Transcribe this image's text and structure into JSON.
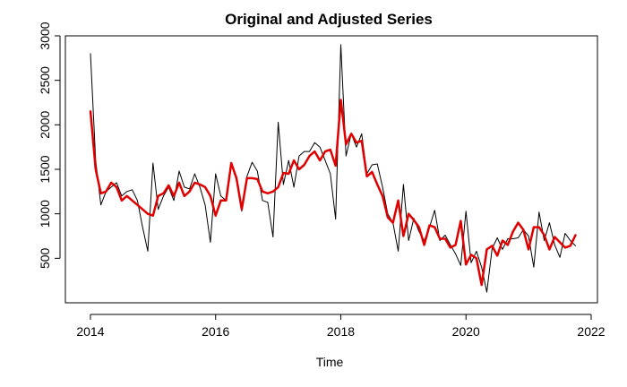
{
  "chart_data": {
    "type": "line",
    "title": "Original and Adjusted Series",
    "xlabel": "Time",
    "ylabel": "",
    "xlim": [
      2013.6,
      2022.1
    ],
    "ylim": [
      0,
      3000
    ],
    "x_ticks": [
      2014,
      2016,
      2018,
      2020,
      2022
    ],
    "y_ticks": [
      500,
      1000,
      1500,
      2000,
      2500,
      3000
    ],
    "grid": false,
    "legend": "none",
    "x": [
      2014.0,
      2014.083,
      2014.167,
      2014.25,
      2014.333,
      2014.417,
      2014.5,
      2014.583,
      2014.667,
      2014.75,
      2014.833,
      2014.917,
      2015.0,
      2015.083,
      2015.167,
      2015.25,
      2015.333,
      2015.417,
      2015.5,
      2015.583,
      2015.667,
      2015.75,
      2015.833,
      2015.917,
      2016.0,
      2016.083,
      2016.167,
      2016.25,
      2016.333,
      2016.417,
      2016.5,
      2016.583,
      2016.667,
      2016.75,
      2016.833,
      2016.917,
      2017.0,
      2017.083,
      2017.167,
      2017.25,
      2017.333,
      2017.417,
      2017.5,
      2017.583,
      2017.667,
      2017.75,
      2017.833,
      2017.917,
      2018.0,
      2018.083,
      2018.167,
      2018.25,
      2018.333,
      2018.417,
      2018.5,
      2018.583,
      2018.667,
      2018.75,
      2018.833,
      2018.917,
      2019.0,
      2019.083,
      2019.167,
      2019.25,
      2019.333,
      2019.417,
      2019.5,
      2019.583,
      2019.667,
      2019.75,
      2019.833,
      2019.917,
      2020.0,
      2020.083,
      2020.167,
      2020.25,
      2020.333,
      2020.417,
      2020.5,
      2020.583,
      2020.667,
      2020.75,
      2020.833,
      2020.917,
      2021.0,
      2021.083,
      2021.167,
      2021.25,
      2021.333,
      2021.417,
      2021.5,
      2021.583,
      2021.667,
      2021.75
    ],
    "series": [
      {
        "color": "#000000",
        "stroke_width": 1,
        "values": [
          2800,
          1600,
          1100,
          1250,
          1300,
          1350,
          1200,
          1250,
          1270,
          1150,
          850,
          580,
          1570,
          1050,
          1200,
          1300,
          1150,
          1480,
          1300,
          1280,
          1450,
          1300,
          1100,
          680,
          1450,
          1200,
          1150,
          1550,
          1380,
          1030,
          1420,
          1580,
          1480,
          1150,
          1130,
          740,
          2030,
          1330,
          1600,
          1300,
          1650,
          1700,
          1700,
          1800,
          1750,
          1600,
          1450,
          940,
          2900,
          1650,
          1900,
          1750,
          1900,
          1450,
          1550,
          1560,
          1300,
          1000,
          900,
          580,
          1330,
          700,
          950,
          800,
          700,
          850,
          1040,
          700,
          760,
          650,
          550,
          420,
          1030,
          450,
          580,
          400,
          120,
          610,
          730,
          600,
          720,
          720,
          730,
          820,
          750,
          400,
          1020,
          700,
          900,
          650,
          510,
          780,
          700,
          640
        ],
        "name": ""
      },
      {
        "color": "#e00000",
        "stroke_width": 2.5,
        "values": [
          2150,
          1500,
          1230,
          1250,
          1350,
          1300,
          1150,
          1200,
          1150,
          1100,
          1050,
          1000,
          980,
          1200,
          1230,
          1320,
          1200,
          1350,
          1200,
          1250,
          1350,
          1330,
          1300,
          1200,
          980,
          1150,
          1150,
          1570,
          1400,
          1050,
          1400,
          1400,
          1390,
          1250,
          1230,
          1250,
          1300,
          1460,
          1450,
          1600,
          1500,
          1550,
          1650,
          1700,
          1600,
          1700,
          1720,
          1540,
          2280,
          1780,
          1900,
          1800,
          1820,
          1420,
          1470,
          1330,
          1200,
          960,
          900,
          1150,
          750,
          1000,
          930,
          850,
          650,
          870,
          850,
          720,
          720,
          620,
          650,
          920,
          430,
          540,
          500,
          200,
          600,
          640,
          530,
          700,
          650,
          800,
          900,
          820,
          600,
          850,
          850,
          760,
          600,
          740,
          680,
          620,
          640,
          760
        ],
        "name": ""
      }
    ]
  }
}
